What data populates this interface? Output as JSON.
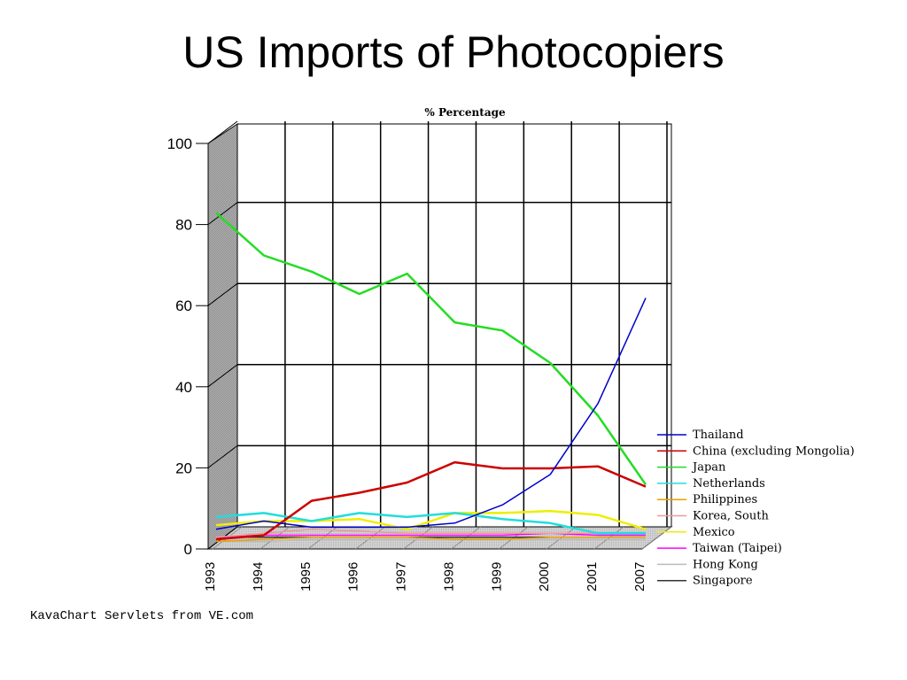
{
  "slide": {
    "title": "US Imports of Photocopiers",
    "footer": "KavaChart Servlets from VE.com"
  },
  "chart_data": {
    "type": "line",
    "title": "% Percentage",
    "xlabel": "",
    "ylabel": "",
    "ylim": [
      0,
      100
    ],
    "yticks": [
      "0",
      "20",
      "40",
      "60",
      "80",
      "100"
    ],
    "grid": true,
    "legend_position": "right",
    "x": [
      "1993",
      "1994",
      "1995",
      "1996",
      "1997",
      "1998",
      "1999",
      "2000",
      "2001",
      "2007"
    ],
    "series": [
      {
        "name": "Thailand",
        "color": "#0000cc",
        "values": [
          4,
          6,
          4.5,
          4.5,
          4.5,
          5.5,
          10,
          17.5,
          35,
          61
        ]
      },
      {
        "name": "China (excluding Mongolia)",
        "color": "#cc0000",
        "values": [
          1.5,
          2.5,
          11,
          13,
          15.5,
          20.5,
          19,
          19,
          19.5,
          14.5
        ]
      },
      {
        "name": "Japan",
        "color": "#22dd22",
        "values": [
          82,
          71.5,
          67.5,
          62,
          67,
          55,
          53,
          45,
          32,
          15
        ]
      },
      {
        "name": "Netherlands",
        "color": "#22dddd",
        "values": [
          7,
          8,
          6,
          8,
          7,
          8,
          6.5,
          5.5,
          3,
          3
        ]
      },
      {
        "name": "Philippines",
        "color": "#e8a000",
        "values": [
          1,
          1.5,
          2,
          2,
          2,
          1.5,
          1.5,
          2,
          2,
          2
        ]
      },
      {
        "name": "Korea, South",
        "color": "#ee9999",
        "values": [
          2,
          3,
          4,
          3.5,
          3,
          3,
          3,
          3,
          3,
          3
        ]
      },
      {
        "name": "Mexico",
        "color": "#eeee00",
        "values": [
          5,
          6,
          6,
          6.5,
          4,
          8,
          8,
          8.5,
          7.5,
          4
        ]
      },
      {
        "name": "Taiwan (Taipei)",
        "color": "#ff00ff",
        "values": [
          2,
          2.5,
          2.5,
          2.5,
          2.5,
          2.5,
          2.5,
          3,
          2.5,
          2.5
        ]
      },
      {
        "name": "Hong Kong",
        "color": "#bbbbbb",
        "values": [
          1,
          1,
          1.5,
          1.5,
          1.5,
          1.5,
          1.5,
          1.5,
          1.5,
          1.5
        ]
      },
      {
        "name": "Singapore",
        "color": "#333333",
        "values": [
          2,
          2,
          2,
          2,
          2,
          2,
          2,
          2,
          2,
          2
        ]
      }
    ]
  }
}
